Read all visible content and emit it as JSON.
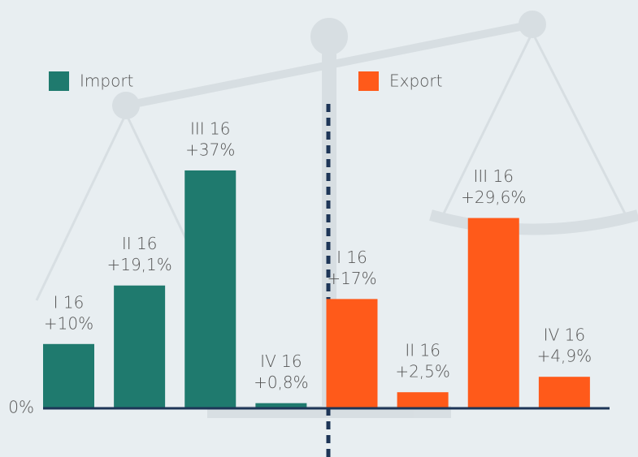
{
  "chart_data": {
    "type": "bar",
    "categories": [
      "I 16",
      "II 16",
      "III 16",
      "IV 16"
    ],
    "series": [
      {
        "name": "Import",
        "color": "#1f7a6e",
        "values": [
          10,
          19.1,
          37,
          0.8
        ],
        "value_labels": [
          "+10%",
          "+19,1%",
          "+37%",
          "+0,8%"
        ]
      },
      {
        "name": "Export",
        "color": "#ff5a1a",
        "values": [
          17,
          2.5,
          29.6,
          4.9
        ],
        "value_labels": [
          "+17%",
          "+2,5%",
          "+29,6%",
          "+4,9%"
        ]
      }
    ],
    "ylim": [
      0,
      50
    ],
    "yticks": [
      {
        "value": 0,
        "label": "0%"
      }
    ]
  }
}
